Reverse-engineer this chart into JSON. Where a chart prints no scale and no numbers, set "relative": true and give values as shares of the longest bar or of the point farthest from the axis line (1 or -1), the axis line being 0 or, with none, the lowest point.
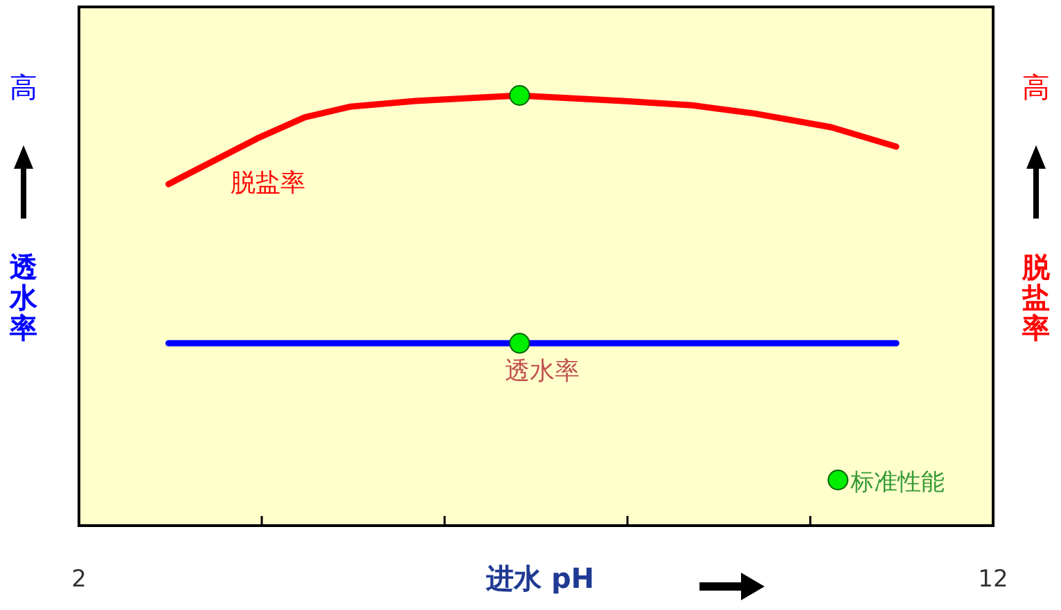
{
  "chart_data": {
    "type": "line",
    "relative": true,
    "xlabel": "进水 pH",
    "ylabel": "透水率",
    "y2label": "脱盐率",
    "annotations": [
      "高",
      "高"
    ],
    "xlim": [
      2,
      12
    ],
    "xticks": [
      2,
      {
        "value": 4,
        "label": null
      },
      {
        "value": 6,
        "label": null
      },
      {
        "value": 8,
        "label": null
      },
      {
        "value": 10,
        "label": null
      },
      12
    ],
    "legend": "bottom right",
    "grid": false,
    "series": [
      {
        "name": "脱盐率",
        "color": "#ff0000",
        "x": [
          2.98,
          3.95,
          4.47,
          4.97,
          5.68,
          6.82,
          7.95,
          8.71,
          9.39,
          10.23,
          10.94
        ],
        "values": [
          0.794,
          0.9,
          0.949,
          0.974,
          0.987,
          1,
          0.987,
          0.977,
          0.958,
          0.926,
          0.881
        ]
      },
      {
        "name": "透水率",
        "color": "#0000ff",
        "x": [
          2.98,
          10.94
        ],
        "values": [
          0.424,
          0.424
        ]
      },
      {
        "name": "标准性能",
        "color": "#00ee00",
        "type": "scatter",
        "marker": "circle",
        "x": [
          6.82,
          6.82
        ],
        "values": [
          1,
          0.424
        ]
      }
    ]
  }
}
